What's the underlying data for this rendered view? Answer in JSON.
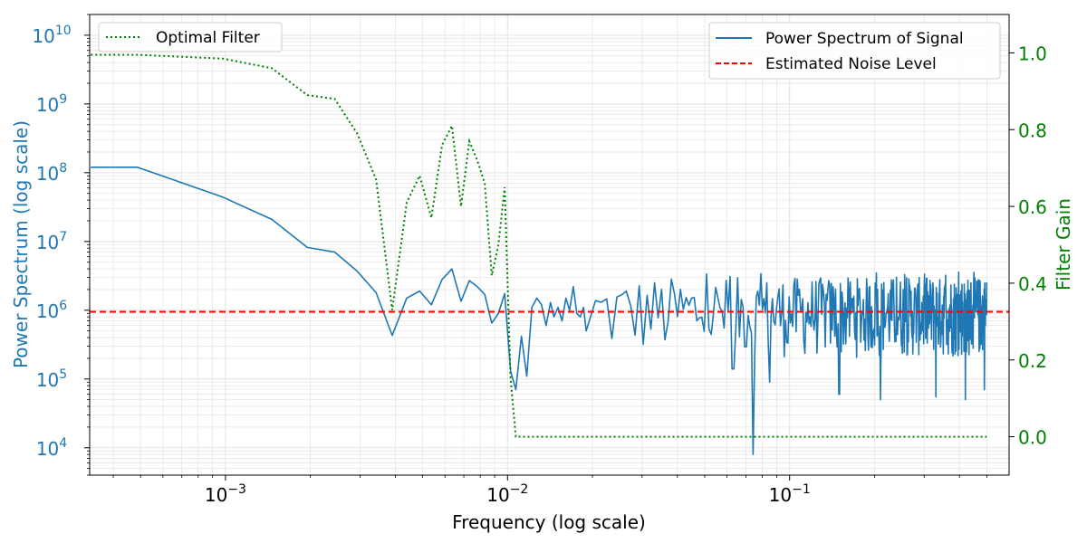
{
  "chart_data": {
    "type": "line",
    "title": "",
    "xlabel": "Frequency (log scale)",
    "ylabel_left": "Power Spectrum (log scale)",
    "ylabel_right": "Filter Gain",
    "x_scale": "log",
    "xlim": [
      0.00033,
      0.6
    ],
    "ylim_left": [
      4000,
      20000000000
    ],
    "ylim_right": [
      -0.1,
      1.1
    ],
    "grid": true,
    "x_ticks": [
      {
        "value": 0.001,
        "base": "10",
        "exp": "−3"
      },
      {
        "value": 0.01,
        "base": "10",
        "exp": "−2"
      },
      {
        "value": 0.1,
        "base": "10",
        "exp": "−1"
      }
    ],
    "y_left_ticks": [
      {
        "value": 10000,
        "base": "10",
        "exp": "4"
      },
      {
        "value": 100000,
        "base": "10",
        "exp": "5"
      },
      {
        "value": 1000000,
        "base": "10",
        "exp": "6"
      },
      {
        "value": 10000000,
        "base": "10",
        "exp": "7"
      },
      {
        "value": 100000000,
        "base": "10",
        "exp": "8"
      },
      {
        "value": 1000000000,
        "base": "10",
        "exp": "9"
      },
      {
        "value": 10000000000,
        "base": "10",
        "exp": "10"
      }
    ],
    "y_right_ticks": [
      "0.0",
      "0.2",
      "0.4",
      "0.6",
      "0.8",
      "1.0"
    ],
    "noise_level": 950000,
    "series": [
      {
        "name": "Power Spectrum of Signal",
        "axis": "left",
        "color": "#1f77b4",
        "style": "solid",
        "x": [
          0.000333,
          0.000488,
          0.00098,
          0.00146,
          0.00195,
          0.00244,
          0.00293,
          0.00342,
          0.0039,
          0.00439,
          0.00488,
          0.00537,
          0.00586,
          0.00635,
          0.00684,
          0.00732,
          0.00781,
          0.0083,
          0.00879,
          0.00928,
          0.00977,
          0.01025,
          0.0107,
          0.0112,
          0.0117,
          0.0122,
          0.0127,
          0.0132,
          0.0137,
          0.0142,
          0.0146,
          0.0151,
          0.0156,
          0.0161,
          0.0166,
          0.0171,
          0.0176,
          0.0181,
          0.0186,
          0.019
        ],
        "values": [
          120000000,
          120000000,
          44000000,
          21000000,
          8200000,
          7000000,
          3700000,
          1800000,
          430000,
          1500000,
          1900000,
          1200000,
          2800000,
          4000000,
          1350000,
          2700000,
          2200000,
          1700000,
          650000,
          900000,
          1750000,
          130000,
          70000,
          420000,
          110000,
          1100000,
          1500000,
          1200000,
          600000,
          1300000,
          800000,
          1100000,
          700000,
          1500000,
          1000000,
          2200000,
          900000,
          800000,
          1100000,
          500000
        ],
        "noise_region": {
          "x_range": [
            0.019,
            0.5
          ],
          "typical_min": 200000,
          "typical_max": 3000000,
          "peak_max": 3600000,
          "deep_dips": [
            {
              "x": 0.063,
              "value": 140000
            },
            {
              "x": 0.0745,
              "value": 8000
            },
            {
              "x": 0.085,
              "value": 90000
            },
            {
              "x": 0.15,
              "value": 60000
            },
            {
              "x": 0.21,
              "value": 50000
            },
            {
              "x": 0.33,
              "value": 55000
            },
            {
              "x": 0.42,
              "value": 50000
            },
            {
              "x": 0.49,
              "value": 70000
            }
          ]
        }
      },
      {
        "name": "Estimated Noise Level",
        "axis": "left",
        "color": "#ff0000",
        "style": "dashed",
        "value": 950000
      },
      {
        "name": "Optimal Filter",
        "axis": "right",
        "color": "#008000",
        "style": "dotted",
        "x": [
          0.000333,
          0.000488,
          0.00098,
          0.00146,
          0.00195,
          0.00244,
          0.00293,
          0.00342,
          0.0039,
          0.00439,
          0.00488,
          0.00537,
          0.00586,
          0.00635,
          0.00684,
          0.00732,
          0.00781,
          0.0083,
          0.00879,
          0.00928,
          0.00977,
          0.01025,
          0.0107,
          0.5
        ],
        "values": [
          0.995,
          0.995,
          0.985,
          0.96,
          0.89,
          0.88,
          0.79,
          0.67,
          0.33,
          0.61,
          0.68,
          0.57,
          0.76,
          0.81,
          0.6,
          0.77,
          0.72,
          0.66,
          0.42,
          0.5,
          0.65,
          0.15,
          0.0,
          0.0
        ]
      }
    ],
    "legends": [
      {
        "placement": "top-left",
        "entries": [
          "Optimal Filter"
        ]
      },
      {
        "placement": "top-right",
        "entries": [
          "Power Spectrum of Signal",
          "Estimated Noise Level"
        ]
      }
    ]
  },
  "colors": {
    "left_axis": "#1f77b4",
    "right_axis": "#008000",
    "noise_line": "#ff0000",
    "grid": "#e3e3e3",
    "frame": "#000000"
  }
}
